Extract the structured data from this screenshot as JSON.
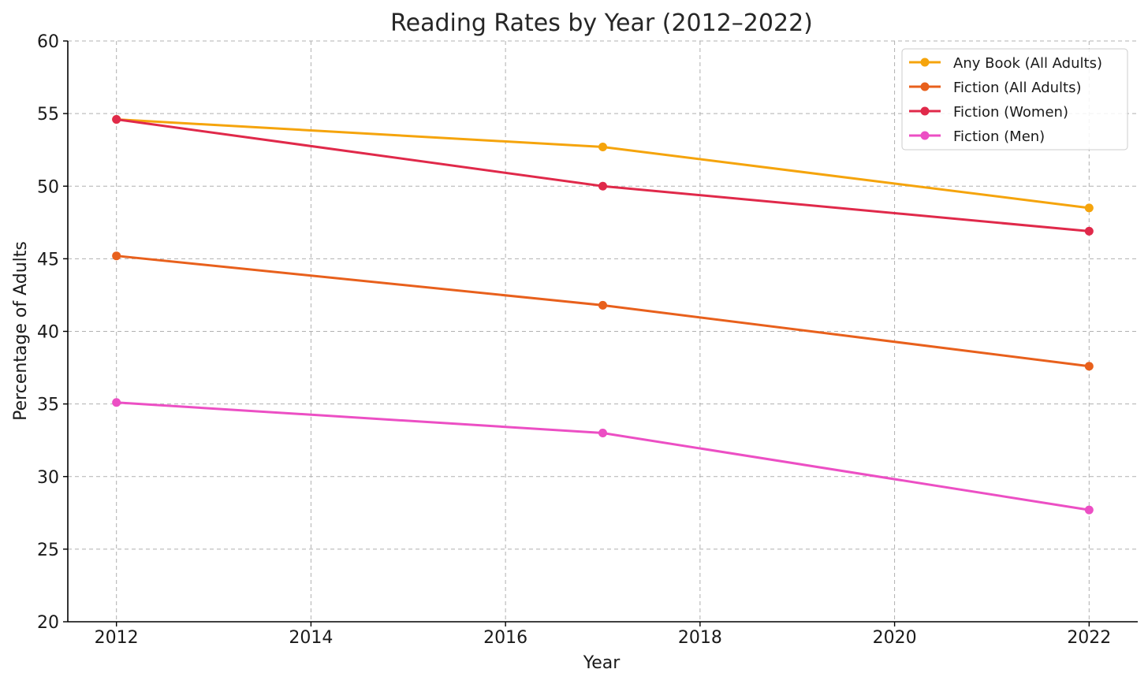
{
  "chart_data": {
    "type": "line",
    "title": "Reading Rates by Year (2012–2022)",
    "xlabel": "Year",
    "ylabel": "Percentage of Adults",
    "xlim": [
      2011.5,
      2022.5
    ],
    "ylim": [
      20,
      60
    ],
    "xticks": [
      2012,
      2014,
      2016,
      2018,
      2020,
      2022
    ],
    "yticks": [
      20,
      25,
      30,
      35,
      40,
      45,
      50,
      55,
      60
    ],
    "grid": true,
    "legend_position": "top-right",
    "x": [
      2012,
      2017,
      2022
    ],
    "series": [
      {
        "name": "Any Book (All Adults)",
        "color": "#f5a40c",
        "values": [
          54.6,
          52.7,
          48.5
        ]
      },
      {
        "name": "Fiction (All Adults)",
        "color": "#e8601c",
        "values": [
          45.2,
          41.8,
          37.6
        ]
      },
      {
        "name": "Fiction (Women)",
        "color": "#e0294a",
        "values": [
          54.6,
          50.0,
          46.9
        ]
      },
      {
        "name": "Fiction (Men)",
        "color": "#ec4fc4",
        "values": [
          35.1,
          33.0,
          27.7
        ]
      }
    ]
  }
}
